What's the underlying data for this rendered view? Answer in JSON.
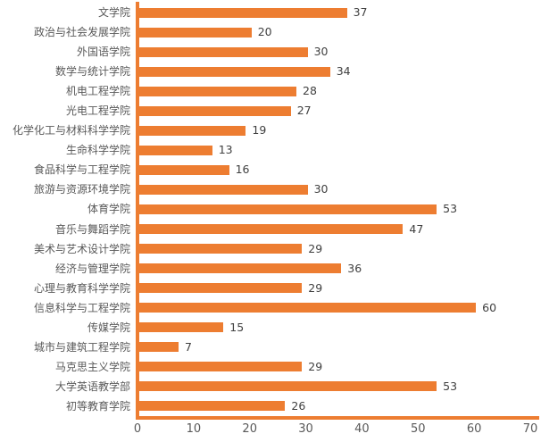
{
  "chart_data": {
    "type": "bar",
    "orientation": "horizontal",
    "title": "",
    "xlabel": "",
    "ylabel": "",
    "categories": [
      "文学院",
      "政治与社会发展学院",
      "外国语学院",
      "数学与统计学院",
      "机电工程学院",
      "光电工程学院",
      "化学化工与材料科学学院",
      "生命科学学院",
      "食品科学与工程学院",
      "旅游与资源环境学院",
      "体育学院",
      "音乐与舞蹈学院",
      "美术与艺术设计学院",
      "经济与管理学院",
      "心理与教育科学学院",
      "信息科学与工程学院",
      "传媒学院",
      "城市与建筑工程学院",
      "马克思主义学院",
      "大学英语教学部",
      "初等教育学院"
    ],
    "values": [
      37,
      20,
      30,
      34,
      28,
      27,
      19,
      13,
      16,
      30,
      53,
      47,
      29,
      36,
      29,
      60,
      15,
      7,
      29,
      53,
      26
    ],
    "xlim": [
      0,
      70
    ],
    "x_ticks": [
      "0",
      "10",
      "20",
      "30",
      "40",
      "50",
      "60",
      "70"
    ],
    "data_labels": true,
    "grid": false,
    "legend": false,
    "colors": {
      "bar": "#ED7D31",
      "axis_line": "#ED7D31",
      "category_label": "#595959",
      "value_label": "#404040",
      "tick_label": "#595959",
      "background": "#FFFFFF"
    }
  }
}
